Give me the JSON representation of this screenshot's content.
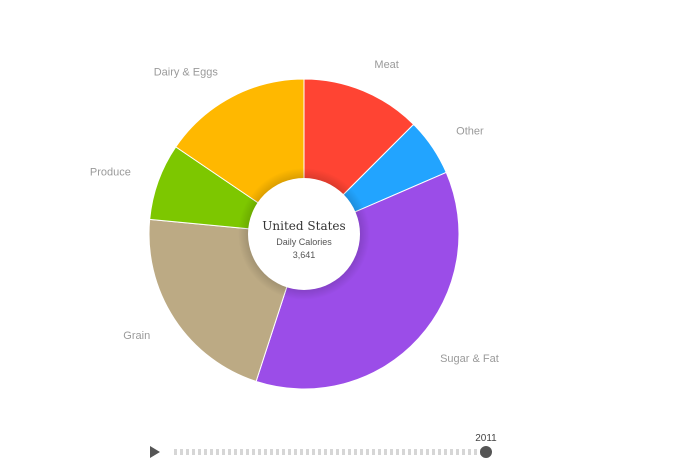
{
  "chart_data": {
    "type": "pie",
    "donut": true,
    "center": {
      "title": "United States",
      "subtitle": "Daily Calories",
      "value": "3,641"
    },
    "slices": [
      {
        "label": "Meat",
        "value": 12.5,
        "color": "#ff4433"
      },
      {
        "label": "Other",
        "value": 6.0,
        "color": "#22a4ff"
      },
      {
        "label": "Sugar & Fat",
        "value": 36.5,
        "color": "#9b4de8"
      },
      {
        "label": "Grain",
        "value": 21.5,
        "color": "#bcaa84"
      },
      {
        "label": "Produce",
        "value": 8.0,
        "color": "#7dc700"
      },
      {
        "label": "Dairy & Eggs",
        "value": 15.5,
        "color": "#ffb800"
      }
    ]
  },
  "timeline": {
    "year": "2011",
    "position": 1.0
  }
}
